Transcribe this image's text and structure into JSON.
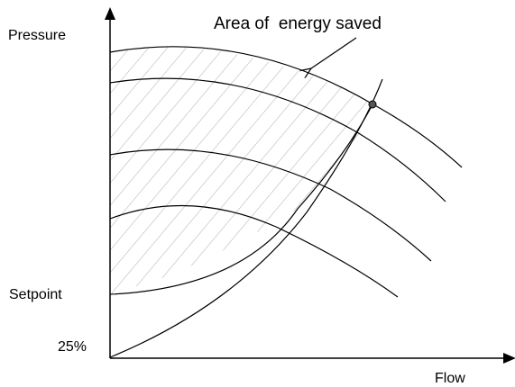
{
  "diagram": {
    "y_axis_label": "Pressure",
    "x_axis_label": "Flow",
    "setpoint_label": "Setpoint",
    "min_label": "25%",
    "annotation": "Area of  energy saved"
  },
  "colors": {
    "stroke": "#000000",
    "hatch": "#b3b3b3",
    "point": "#555555"
  }
}
